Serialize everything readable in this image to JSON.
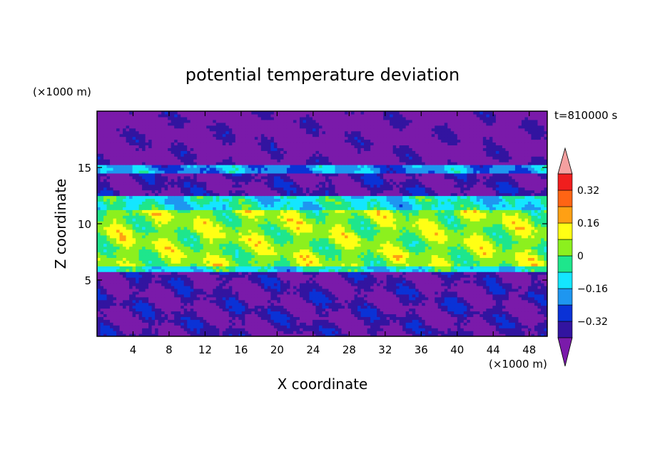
{
  "chart_data": {
    "type": "heatmap",
    "title": "potential temperature deviation",
    "xlabel": "X coordinate",
    "ylabel": "Z coordinate",
    "x_unit_label": "(×1000 m)",
    "y_unit_label": "(×1000 m)",
    "time_label": "t=810000 s",
    "xlim": [
      0,
      50
    ],
    "ylim": [
      0,
      20
    ],
    "x_ticks": [
      4,
      8,
      12,
      16,
      20,
      24,
      28,
      32,
      36,
      40,
      44,
      48
    ],
    "y_ticks": [
      5,
      10,
      15
    ],
    "colorbar": {
      "levels": [
        -0.4,
        -0.32,
        -0.24,
        -0.16,
        -0.08,
        0,
        0.08,
        0.16,
        0.24,
        0.32,
        0.4
      ],
      "tick_labels": [
        "0.32",
        "0.16",
        "0",
        "−0.16",
        "−0.32"
      ],
      "tick_values": [
        0.32,
        0.16,
        0,
        -0.16,
        -0.32
      ],
      "colors": [
        "#7a1aaa",
        "#3214a0",
        "#0a32d6",
        "#1e96f0",
        "#14e6ff",
        "#1ee68c",
        "#8cf01e",
        "#ffff14",
        "#ffa014",
        "#ff6414",
        "#f01e1e",
        "#f5a0a0"
      ],
      "extend": "both"
    },
    "regions": [
      {
        "z": [
          15.2,
          20
        ],
        "value": -0.45,
        "note": "upper purple layer"
      },
      {
        "z": [
          14.6,
          15.2
        ],
        "value": -0.2
      },
      {
        "z": [
          12.5,
          14.6
        ],
        "value": -0.4
      },
      {
        "z": [
          11.3,
          12.5
        ],
        "value": -0.1
      },
      {
        "z": [
          6.3,
          11.3
        ],
        "value": 0.04
      },
      {
        "z": [
          5.7,
          6.3
        ],
        "value": -0.1
      },
      {
        "z": [
          0,
          5.7
        ],
        "value": -0.4
      }
    ]
  }
}
